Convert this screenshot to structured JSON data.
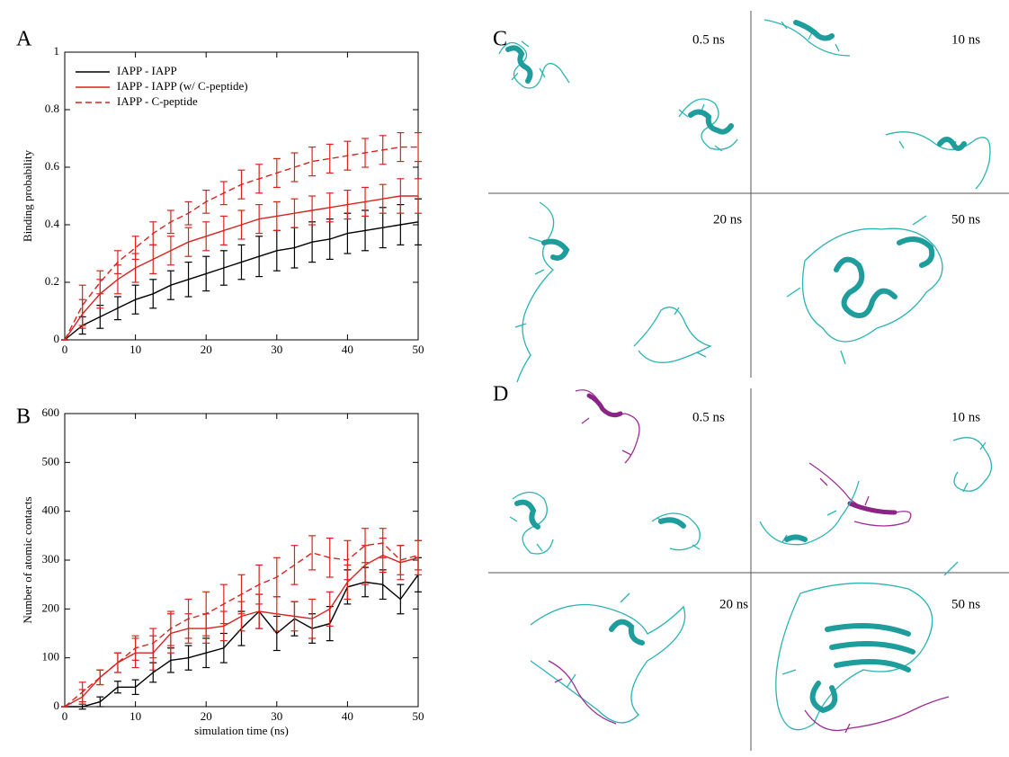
{
  "chart_data": [
    {
      "type": "line",
      "label": "A",
      "ylabel": "Binding probability",
      "x": [
        0,
        2.5,
        5,
        7.5,
        10,
        12.5,
        15,
        17.5,
        20,
        22.5,
        25,
        27.5,
        30,
        32.5,
        35,
        37.5,
        40,
        42.5,
        45,
        47.5,
        50
      ],
      "xlim": [
        0,
        50
      ],
      "xticks": [
        0,
        10,
        20,
        30,
        40,
        50
      ],
      "ylim": [
        0,
        1
      ],
      "yticks": [
        0,
        0.2,
        0.4,
        0.6,
        0.8,
        1
      ],
      "legend": "top-left",
      "series": [
        {
          "name": "IAPP - IAPP",
          "color": "#000000",
          "linestyle": "solid",
          "values": [
            0,
            0.05,
            0.08,
            0.11,
            0.14,
            0.16,
            0.19,
            0.21,
            0.23,
            0.25,
            0.27,
            0.29,
            0.31,
            0.32,
            0.34,
            0.35,
            0.37,
            0.38,
            0.39,
            0.4,
            0.41
          ],
          "errors": [
            0,
            0.03,
            0.04,
            0.04,
            0.05,
            0.05,
            0.05,
            0.06,
            0.06,
            0.06,
            0.06,
            0.07,
            0.07,
            0.07,
            0.07,
            0.07,
            0.07,
            0.07,
            0.07,
            0.07,
            0.08
          ]
        },
        {
          "name": "IAPP - IAPP (w/ C-peptide)",
          "color": "#d8231f",
          "linestyle": "solid",
          "values": [
            0,
            0.09,
            0.16,
            0.21,
            0.25,
            0.28,
            0.31,
            0.34,
            0.36,
            0.38,
            0.4,
            0.42,
            0.43,
            0.44,
            0.45,
            0.46,
            0.47,
            0.48,
            0.49,
            0.5,
            0.5
          ],
          "errors": [
            0,
            0.05,
            0.05,
            0.05,
            0.05,
            0.05,
            0.05,
            0.05,
            0.05,
            0.05,
            0.05,
            0.05,
            0.05,
            0.05,
            0.05,
            0.05,
            0.05,
            0.05,
            0.05,
            0.06,
            0.06
          ]
        },
        {
          "name": "IAPP - C-peptide",
          "color": "#d8231f",
          "linestyle": "dashed",
          "values": [
            0,
            0.12,
            0.2,
            0.27,
            0.32,
            0.37,
            0.41,
            0.44,
            0.48,
            0.51,
            0.54,
            0.56,
            0.58,
            0.6,
            0.62,
            0.63,
            0.64,
            0.65,
            0.66,
            0.67,
            0.67
          ],
          "errors": [
            0,
            0.07,
            0.04,
            0.04,
            0.04,
            0.04,
            0.04,
            0.04,
            0.04,
            0.04,
            0.05,
            0.05,
            0.05,
            0.05,
            0.05,
            0.05,
            0.05,
            0.05,
            0.05,
            0.05,
            0.05
          ]
        }
      ]
    },
    {
      "type": "line",
      "label": "B",
      "ylabel": "Number of atomic contacts",
      "xlabel": "simulation time (ns)",
      "x": [
        0,
        2.5,
        5,
        7.5,
        10,
        12.5,
        15,
        17.5,
        20,
        22.5,
        25,
        27.5,
        30,
        32.5,
        35,
        37.5,
        40,
        42.5,
        45,
        47.5,
        50
      ],
      "xlim": [
        0,
        50
      ],
      "xticks": [
        0,
        10,
        20,
        30,
        40,
        50
      ],
      "ylim": [
        0,
        600
      ],
      "yticks": [
        0,
        100,
        200,
        300,
        400,
        500,
        600
      ],
      "series": [
        {
          "color": "#000000",
          "linestyle": "solid",
          "values": [
            0,
            0,
            10,
            40,
            40,
            70,
            95,
            100,
            110,
            120,
            160,
            195,
            150,
            180,
            160,
            170,
            245,
            255,
            250,
            220,
            270
          ],
          "errors": [
            0,
            5,
            10,
            12,
            15,
            20,
            25,
            25,
            30,
            30,
            35,
            35,
            35,
            35,
            30,
            35,
            35,
            30,
            30,
            30,
            35
          ]
        },
        {
          "color": "#d8231f",
          "linestyle": "solid",
          "values": [
            0,
            20,
            60,
            90,
            110,
            110,
            150,
            160,
            160,
            165,
            185,
            195,
            190,
            185,
            180,
            200,
            255,
            290,
            310,
            295,
            305
          ],
          "errors": [
            0,
            15,
            15,
            20,
            30,
            35,
            40,
            30,
            30,
            30,
            30,
            35,
            35,
            30,
            40,
            35,
            35,
            40,
            35,
            35,
            35
          ]
        },
        {
          "color": "#d8231f",
          "linestyle": "dashed",
          "values": [
            0,
            30,
            60,
            90,
            120,
            130,
            160,
            180,
            190,
            210,
            230,
            250,
            265,
            290,
            315,
            305,
            300,
            330,
            335,
            300,
            310
          ],
          "errors": [
            0,
            20,
            15,
            20,
            25,
            30,
            35,
            40,
            45,
            40,
            40,
            40,
            40,
            40,
            35,
            40,
            40,
            35,
            30,
            30,
            30
          ]
        }
      ]
    }
  ],
  "panels": [
    {
      "label": "C",
      "frames": [
        "0.5 ns",
        "10 ns",
        "20 ns",
        "50 ns"
      ]
    },
    {
      "label": "D",
      "frames": [
        "0.5 ns",
        "10 ns",
        "20 ns",
        "50 ns"
      ]
    }
  ]
}
